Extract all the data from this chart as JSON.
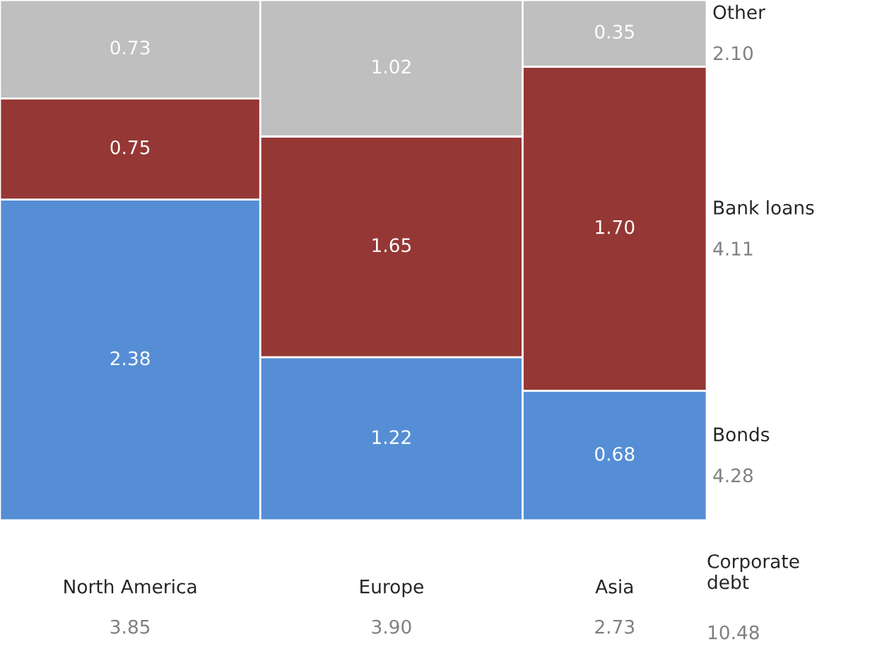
{
  "chart_data": {
    "type": "other",
    "categories": [
      "North America",
      "Europe",
      "Asia"
    ],
    "series": [
      {
        "name": "Bonds",
        "color": "#558ed5",
        "values": [
          2.38,
          1.22,
          0.68
        ],
        "value_labels": [
          "2.38",
          "1.22",
          "0.68"
        ]
      },
      {
        "name": "Bank loans",
        "color": "#953735",
        "values": [
          0.75,
          1.65,
          1.7
        ],
        "value_labels": [
          "0.75",
          "1.65",
          "1.70"
        ]
      },
      {
        "name": "Other",
        "color": "#bfbfbf",
        "values": [
          0.73,
          1.02,
          0.35
        ],
        "value_labels": [
          "0.73",
          "1.02",
          "0.35"
        ]
      }
    ],
    "totals": [
      "3.85",
      "3.90",
      "2.73"
    ],
    "annotations": [
      "4.28",
      "4.11",
      "2.10",
      "Corporate\ndebt",
      "10.48"
    ]
  }
}
